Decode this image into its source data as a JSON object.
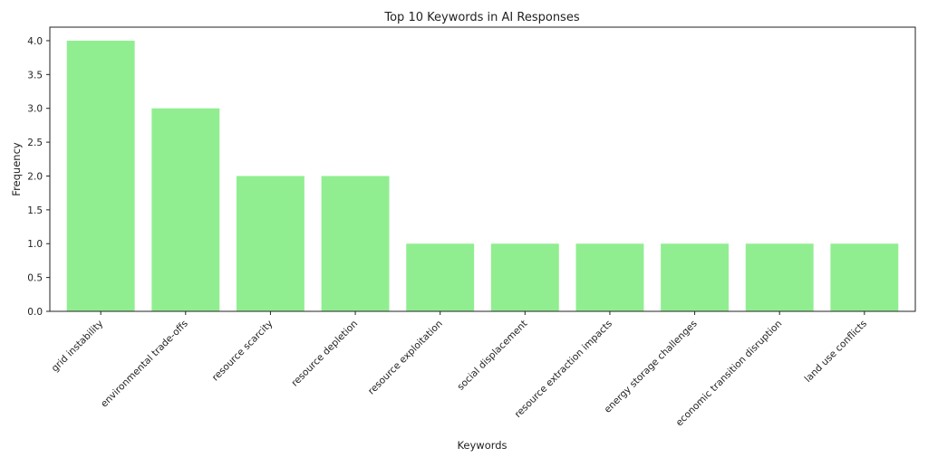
{
  "chart_data": {
    "type": "bar",
    "title": "Top 10 Keywords in AI Responses",
    "xlabel": "Keywords",
    "ylabel": "Frequency",
    "categories": [
      "grid instability",
      "environmental trade-offs",
      "resource scarcity",
      "resource depletion",
      "resource exploitation",
      "social displacement",
      "resource extraction impacts",
      "energy storage challenges",
      "economic transition disruption",
      "land use conflicts"
    ],
    "values": [
      4,
      3,
      2,
      2,
      1,
      1,
      1,
      1,
      1,
      1
    ],
    "ylim": [
      0,
      4.2
    ],
    "yticks": [
      "0.0",
      "0.5",
      "1.0",
      "1.5",
      "2.0",
      "2.5",
      "3.0",
      "3.5",
      "4.0"
    ],
    "bar_color": "#90ee90",
    "grid": false,
    "legend": "none"
  }
}
